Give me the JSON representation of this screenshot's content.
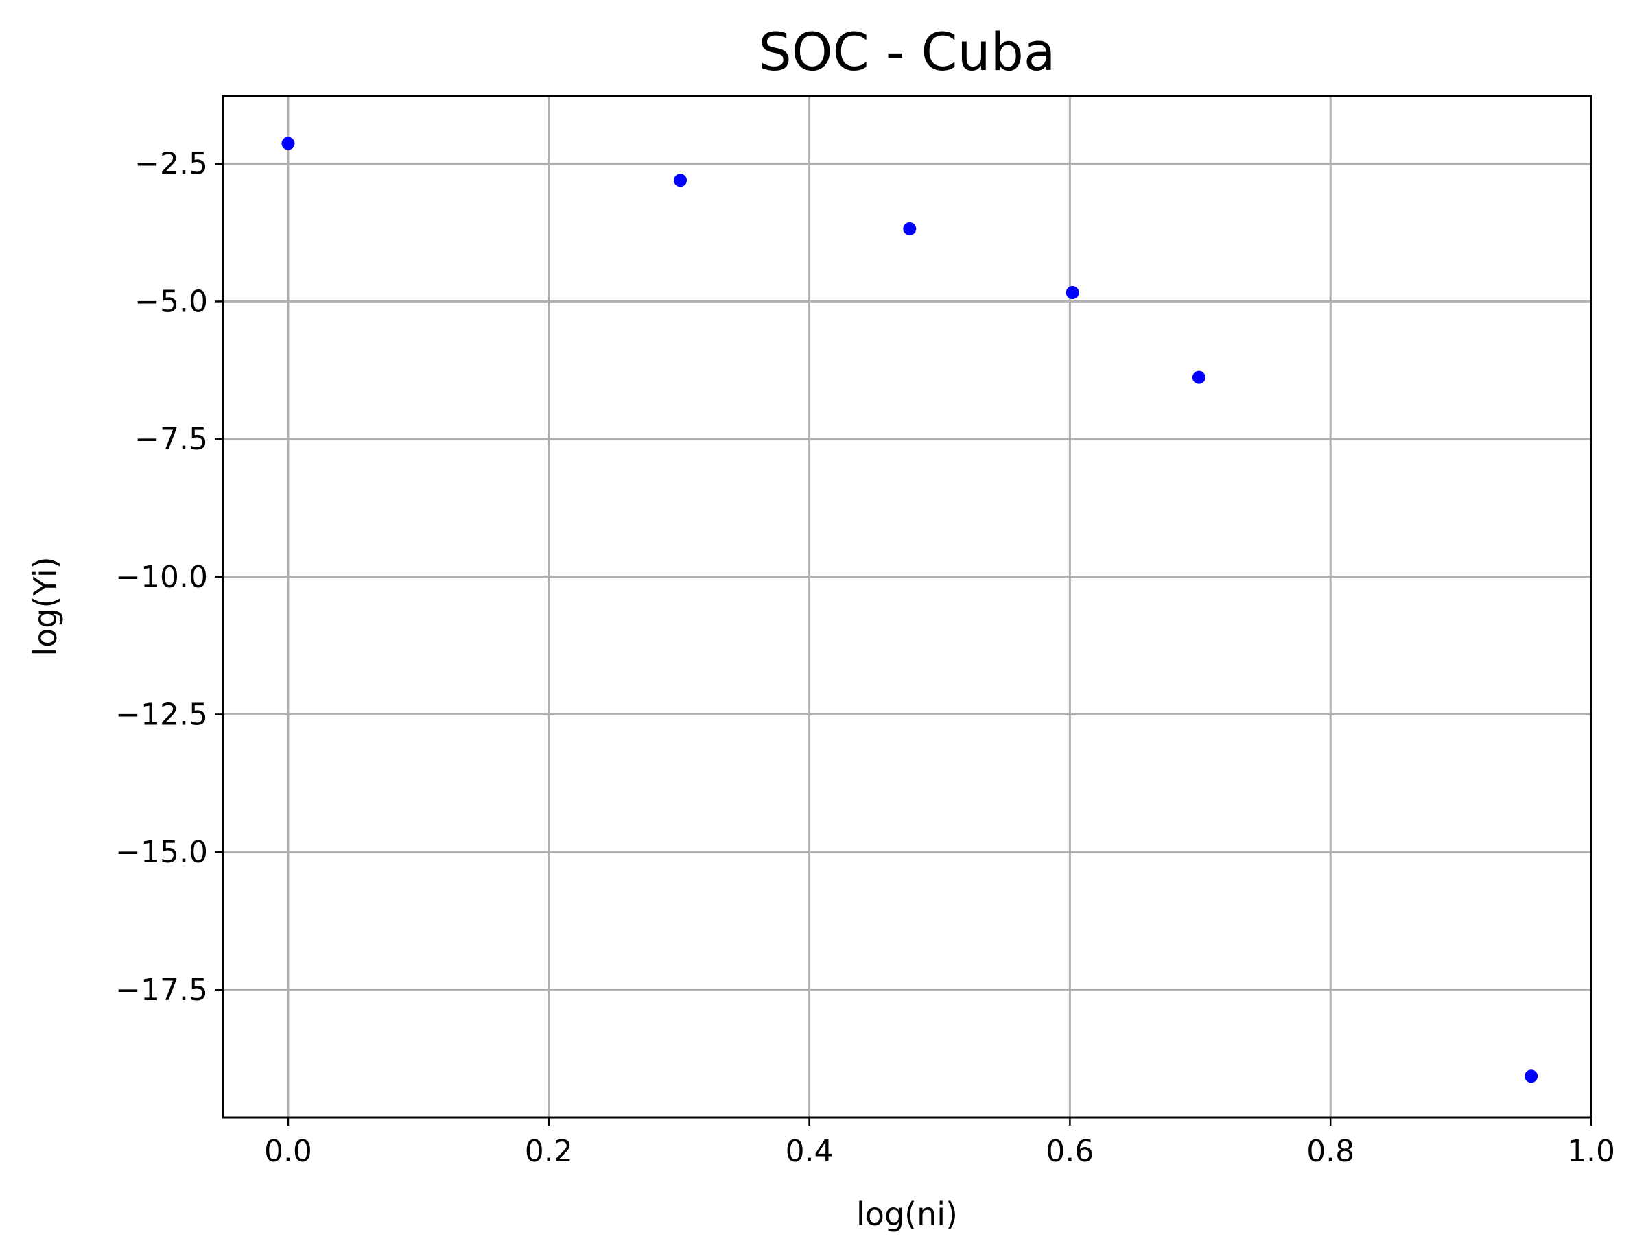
{
  "chart_data": {
    "type": "scatter",
    "title": "SOC - Cuba",
    "xlabel": "log(ni)",
    "ylabel": "log(Yi)",
    "xlim": [
      -0.05,
      1.0
    ],
    "ylim": [
      -19.82,
      -1.27
    ],
    "xticks": [
      0.0,
      0.2,
      0.4,
      0.6,
      0.8,
      1.0
    ],
    "xtick_labels": [
      "0.0",
      "0.2",
      "0.4",
      "0.6",
      "0.8",
      "1.0"
    ],
    "yticks": [
      -2.5,
      -5.0,
      -7.5,
      -10.0,
      -12.5,
      -15.0,
      -17.5
    ],
    "ytick_labels": [
      "−2.5",
      "−5.0",
      "−7.5",
      "−10.0",
      "−12.5",
      "−15.0",
      "−17.5"
    ],
    "grid": true,
    "marker_color": "#0000ff",
    "points": [
      {
        "x": 0.0,
        "y": -2.13
      },
      {
        "x": 0.301,
        "y": -2.8
      },
      {
        "x": 0.477,
        "y": -3.68
      },
      {
        "x": 0.602,
        "y": -4.84
      },
      {
        "x": 0.699,
        "y": -6.38
      },
      {
        "x": 0.954,
        "y": -19.07
      }
    ]
  }
}
